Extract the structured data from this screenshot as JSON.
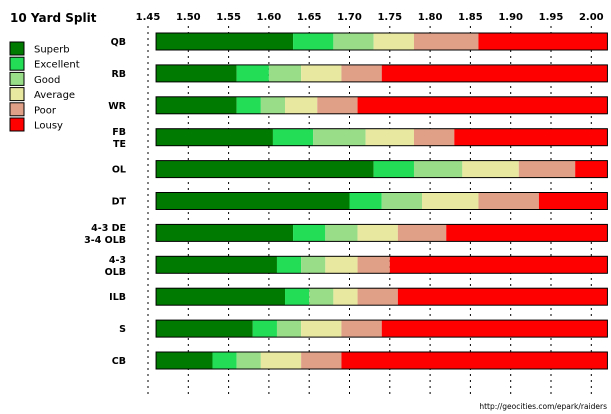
{
  "chart_data": {
    "type": "bar",
    "orientation": "horizontal",
    "stacked": true,
    "title": "10 Yard Split",
    "footer": "http://geocities.com/epark/raiders",
    "x_ticks": [
      "1.45",
      "1.50",
      "1.55",
      "1.60",
      "1.65",
      "1.70",
      "1.75",
      "1.80",
      "1.85",
      "1.90",
      "1.95",
      "2.00"
    ],
    "xlim": [
      1.45,
      2.01
    ],
    "tiers": [
      {
        "name": "Superb",
        "color": "#007a00"
      },
      {
        "name": "Excellent",
        "color": "#22dd55"
      },
      {
        "name": "Good",
        "color": "#99dd88"
      },
      {
        "name": "Average",
        "color": "#e8e8a0"
      },
      {
        "name": "Poor",
        "color": "#e0a088"
      },
      {
        "name": "Lousy",
        "color": "#ff0000"
      }
    ],
    "positions": [
      {
        "label": [
          "QB"
        ],
        "thresholds": [
          1.46,
          1.63,
          1.68,
          1.73,
          1.78,
          1.86,
          2.02
        ]
      },
      {
        "label": [
          "RB"
        ],
        "thresholds": [
          1.46,
          1.56,
          1.6,
          1.64,
          1.69,
          1.74,
          2.02
        ]
      },
      {
        "label": [
          "WR"
        ],
        "thresholds": [
          1.46,
          1.56,
          1.59,
          1.62,
          1.66,
          1.71,
          2.02
        ]
      },
      {
        "label": [
          "FB",
          "TE"
        ],
        "thresholds": [
          1.46,
          1.605,
          1.655,
          1.72,
          1.78,
          1.83,
          2.02
        ]
      },
      {
        "label": [
          "OL"
        ],
        "thresholds": [
          1.46,
          1.73,
          1.78,
          1.84,
          1.91,
          1.98,
          2.02
        ]
      },
      {
        "label": [
          "DT"
        ],
        "thresholds": [
          1.46,
          1.7,
          1.74,
          1.79,
          1.86,
          1.935,
          2.02
        ]
      },
      {
        "label": [
          "4-3 DE",
          "3-4 OLB"
        ],
        "thresholds": [
          1.46,
          1.63,
          1.67,
          1.71,
          1.76,
          1.82,
          2.02
        ]
      },
      {
        "label": [
          "4-3",
          "OLB"
        ],
        "thresholds": [
          1.46,
          1.61,
          1.64,
          1.67,
          1.71,
          1.75,
          2.02
        ]
      },
      {
        "label": [
          "ILB"
        ],
        "thresholds": [
          1.46,
          1.62,
          1.65,
          1.68,
          1.71,
          1.76,
          2.02
        ]
      },
      {
        "label": [
          "S"
        ],
        "thresholds": [
          1.46,
          1.58,
          1.61,
          1.64,
          1.69,
          1.74,
          2.02
        ]
      },
      {
        "label": [
          "CB"
        ],
        "thresholds": [
          1.46,
          1.53,
          1.56,
          1.59,
          1.64,
          1.69,
          2.02
        ]
      }
    ]
  }
}
